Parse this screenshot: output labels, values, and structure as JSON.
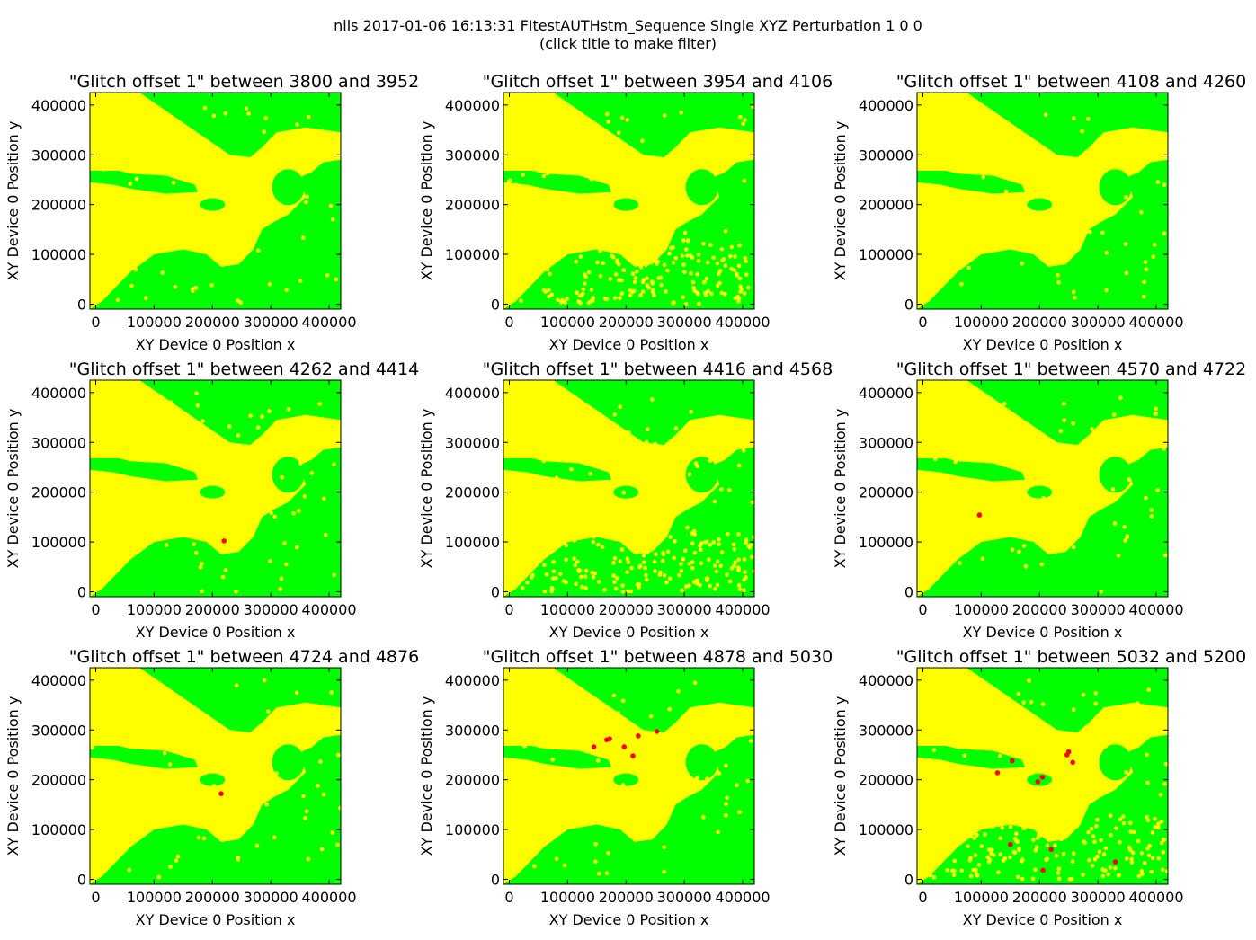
{
  "figure": {
    "title_line1": "nils 2017-01-06 16:13:31 FItestAUTHstm_Sequence Single XYZ Perturbation 1 0 0",
    "title_line2": "(click title to make filter)"
  },
  "colors": {
    "background_points": "#00ff00",
    "pass_points": "#ffff00",
    "glitch_points": "#ff0000"
  },
  "chart_data": [
    {
      "type": "scatter",
      "title": "\"Glitch offset 1\" between 3800 and 3952",
      "xlabel": "XY Device 0 Position  x",
      "ylabel": "XY Device 0 Position  y",
      "xlim": [
        -10000,
        420000
      ],
      "ylim": [
        -10000,
        425000
      ],
      "xticks": [
        "0",
        "100000",
        "200000",
        "300000",
        "400000"
      ],
      "yticks": [
        "0",
        "100000",
        "200000",
        "300000",
        "400000"
      ],
      "scatter_noise": "low",
      "red_points": []
    },
    {
      "type": "scatter",
      "title": "\"Glitch offset 1\" between 3954 and 4106",
      "xlabel": "XY Device 0 Position  x",
      "ylabel": "XY Device 0 Position  y",
      "xlim": [
        -10000,
        420000
      ],
      "ylim": [
        -10000,
        425000
      ],
      "xticks": [
        "0",
        "100000",
        "200000",
        "300000",
        "400000"
      ],
      "yticks": [
        "0",
        "100000",
        "200000",
        "300000",
        "400000"
      ],
      "scatter_noise": "high",
      "red_points": []
    },
    {
      "type": "scatter",
      "title": "\"Glitch offset 1\" between 4108 and 4260",
      "xlabel": "XY Device 0 Position  x",
      "ylabel": "XY Device 0 Position  y",
      "xlim": [
        -10000,
        420000
      ],
      "ylim": [
        -10000,
        425000
      ],
      "xticks": [
        "0",
        "100000",
        "200000",
        "300000",
        "400000"
      ],
      "yticks": [
        "0",
        "100000",
        "200000",
        "300000",
        "400000"
      ],
      "scatter_noise": "low",
      "red_points": []
    },
    {
      "type": "scatter",
      "title": "\"Glitch offset 1\" between 4262 and 4414",
      "xlabel": "XY Device 0 Position  x",
      "ylabel": "XY Device 0 Position  y",
      "xlim": [
        -10000,
        420000
      ],
      "ylim": [
        -10000,
        425000
      ],
      "xticks": [
        "0",
        "100000",
        "200000",
        "300000",
        "400000"
      ],
      "yticks": [
        "0",
        "100000",
        "200000",
        "300000",
        "400000"
      ],
      "scatter_noise": "low",
      "red_points": [
        [
          220000,
          102000
        ]
      ]
    },
    {
      "type": "scatter",
      "title": "\"Glitch offset 1\" between 4416 and 4568",
      "xlabel": "XY Device 0 Position  x",
      "ylabel": "XY Device 0 Position  y",
      "xlim": [
        -10000,
        420000
      ],
      "ylim": [
        -10000,
        425000
      ],
      "xticks": [
        "0",
        "100000",
        "200000",
        "300000",
        "400000"
      ],
      "yticks": [
        "0",
        "100000",
        "200000",
        "300000",
        "400000"
      ],
      "scatter_noise": "high",
      "red_points": []
    },
    {
      "type": "scatter",
      "title": "\"Glitch offset 1\" between 4570 and 4722",
      "xlabel": "XY Device 0 Position  x",
      "ylabel": "XY Device 0 Position  y",
      "xlim": [
        -10000,
        420000
      ],
      "ylim": [
        -10000,
        425000
      ],
      "xticks": [
        "0",
        "100000",
        "200000",
        "300000",
        "400000"
      ],
      "yticks": [
        "0",
        "100000",
        "200000",
        "300000",
        "400000"
      ],
      "scatter_noise": "low",
      "red_points": [
        [
          97000,
          154000
        ]
      ]
    },
    {
      "type": "scatter",
      "title": "\"Glitch offset 1\" between 4724 and 4876",
      "xlabel": "XY Device 0 Position  x",
      "ylabel": "XY Device 0 Position  y",
      "xlim": [
        -10000,
        420000
      ],
      "ylim": [
        -10000,
        425000
      ],
      "xticks": [
        "0",
        "100000",
        "200000",
        "300000",
        "400000"
      ],
      "yticks": [
        "0",
        "100000",
        "200000",
        "300000",
        "400000"
      ],
      "scatter_noise": "low",
      "red_points": [
        [
          215000,
          172000
        ]
      ]
    },
    {
      "type": "scatter",
      "title": "\"Glitch offset 1\" between 4878 and 5030",
      "xlabel": "XY Device 0 Position  x",
      "ylabel": "XY Device 0 Position  y",
      "xlim": [
        -10000,
        420000
      ],
      "ylim": [
        -10000,
        425000
      ],
      "xticks": [
        "0",
        "100000",
        "200000",
        "300000",
        "400000"
      ],
      "yticks": [
        "0",
        "100000",
        "200000",
        "300000",
        "400000"
      ],
      "scatter_noise": "low",
      "red_points": [
        [
          145000,
          266000
        ],
        [
          167000,
          280000
        ],
        [
          172000,
          282000
        ],
        [
          197000,
          266000
        ],
        [
          212000,
          248000
        ],
        [
          221000,
          288000
        ],
        [
          253000,
          297000
        ]
      ]
    },
    {
      "type": "scatter",
      "title": "\"Glitch offset 1\" between 5032 and 5200",
      "xlabel": "XY Device 0 Position  x",
      "ylabel": "XY Device 0 Position  y",
      "xlim": [
        -10000,
        420000
      ],
      "ylim": [
        -10000,
        425000
      ],
      "xticks": [
        "0",
        "100000",
        "200000",
        "300000",
        "400000"
      ],
      "yticks": [
        "0",
        "100000",
        "200000",
        "300000",
        "400000"
      ],
      "scatter_noise": "high",
      "red_points": [
        [
          128000,
          214000
        ],
        [
          153000,
          238000
        ],
        [
          150000,
          70000
        ],
        [
          197000,
          196000
        ],
        [
          205000,
          205000
        ],
        [
          206000,
          18000
        ],
        [
          220000,
          60000
        ],
        [
          247000,
          250000
        ],
        [
          250000,
          256000
        ],
        [
          257000,
          235000
        ],
        [
          330000,
          35000
        ]
      ]
    }
  ]
}
